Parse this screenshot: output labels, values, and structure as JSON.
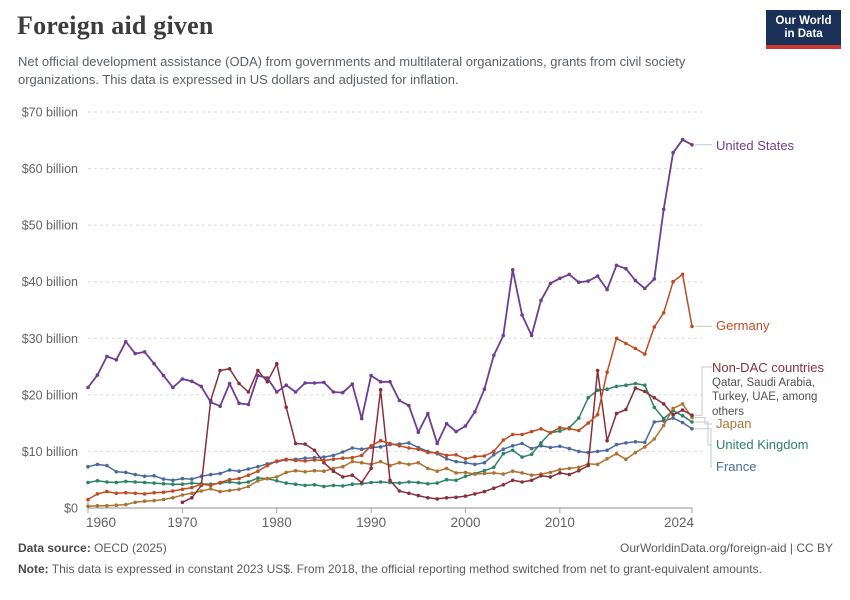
{
  "header": {
    "title": "Foreign aid given",
    "subtitle": "Net official development assistance (ODA) from governments and multilateral organizations, grants from civil society organizations. This data is expressed in US dollars and adjusted for inflation.",
    "logo": {
      "line1": "Our World",
      "line2": "in Data",
      "bg_color": "#1a3057",
      "accent_color": "#cd3731"
    }
  },
  "footer": {
    "source_label": "Data source:",
    "source_value": " OECD (2025)",
    "link_text": "OurWorldinData.org/foreign-aid | CC BY",
    "note_label": "Note:",
    "note_value": " This data is expressed in constant 2023 US$. From 2018, the official reporting method switched from net to grant-equivalent amounts."
  },
  "chart_data": {
    "type": "line",
    "title": "Foreign aid given",
    "xlabel": "",
    "ylabel": "",
    "xlim": [
      1960,
      2024
    ],
    "ylim": [
      0,
      70
    ],
    "grid": "horizontal-dashed",
    "legend_position": "right-edge-labels",
    "xticks": [
      1960,
      1970,
      1980,
      1990,
      2000,
      2010,
      2024
    ],
    "yticks": [
      0,
      10,
      20,
      30,
      40,
      50,
      60,
      70
    ],
    "ytick_labels": [
      "$0",
      "$10 billion",
      "$20 billion",
      "$30 billion",
      "$40 billion",
      "$50 billion",
      "$60 billion",
      "$70 billion"
    ],
    "unit": "US$ billion (constant 2023)",
    "x": [
      1960,
      1961,
      1962,
      1963,
      1964,
      1965,
      1966,
      1967,
      1968,
      1969,
      1970,
      1971,
      1972,
      1973,
      1974,
      1975,
      1976,
      1977,
      1978,
      1979,
      1980,
      1981,
      1982,
      1983,
      1984,
      1985,
      1986,
      1987,
      1988,
      1989,
      1990,
      1991,
      1992,
      1993,
      1994,
      1995,
      1996,
      1997,
      1998,
      1999,
      2000,
      2001,
      2002,
      2003,
      2004,
      2005,
      2006,
      2007,
      2008,
      2009,
      2010,
      2011,
      2012,
      2013,
      2014,
      2015,
      2016,
      2017,
      2018,
      2019,
      2020,
      2021,
      2022,
      2023,
      2024
    ],
    "series": [
      {
        "name": "United States",
        "color": "#6d3e91",
        "values": [
          21.3,
          23.5,
          26.8,
          26.2,
          29.4,
          27.3,
          27.6,
          25.5,
          23.4,
          21.3,
          22.8,
          22.4,
          21.5,
          18.7,
          18.0,
          22.0,
          18.5,
          18.3,
          23.4,
          23.0,
          20.5,
          21.7,
          20.5,
          22.1,
          22.1,
          22.2,
          20.5,
          20.4,
          21.9,
          15.8,
          23.4,
          22.3,
          22.3,
          19.0,
          18.1,
          13.4,
          16.7,
          11.4,
          14.9,
          13.5,
          14.5,
          17.0,
          21.0,
          27.0,
          30.5,
          42.1,
          34.1,
          30.5,
          36.7,
          39.7,
          40.6,
          41.3,
          39.9,
          40.1,
          41.0,
          38.6,
          42.9,
          42.3,
          40.2,
          38.8,
          40.5,
          52.8,
          62.8,
          65.1,
          64.2
        ]
      },
      {
        "name": "Germany",
        "color": "#bf4b23",
        "values": [
          1.5,
          2.5,
          2.9,
          2.6,
          2.7,
          2.6,
          2.5,
          2.7,
          2.8,
          3.0,
          3.3,
          3.6,
          4.2,
          4.0,
          4.5,
          5.0,
          5.2,
          5.8,
          6.5,
          7.5,
          8.3,
          8.6,
          8.4,
          8.3,
          8.5,
          8.4,
          8.6,
          8.8,
          8.9,
          9.3,
          11.0,
          11.9,
          11.4,
          11.0,
          10.6,
          10.4,
          9.8,
          9.8,
          9.3,
          9.4,
          8.7,
          9.1,
          9.2,
          10.0,
          12.0,
          13.0,
          13.0,
          13.5,
          14.0,
          13.3,
          14.2,
          14.0,
          13.7,
          15.0,
          16.5,
          24.0,
          30.0,
          29.1,
          28.2,
          27.2,
          32.0,
          34.5,
          40.0,
          41.3,
          32.1
        ]
      },
      {
        "name": "Non-DAC countries",
        "sublabel": "Qatar, Saudi Arabia, Turkey, UAE, among others",
        "color": "#883039",
        "values": [
          null,
          null,
          null,
          null,
          null,
          null,
          null,
          null,
          null,
          null,
          1.0,
          1.8,
          4.0,
          19.0,
          24.3,
          24.6,
          22.0,
          20.5,
          24.3,
          22.3,
          25.5,
          17.8,
          11.4,
          11.3,
          10.2,
          8.0,
          6.5,
          5.5,
          5.8,
          4.5,
          7.0,
          20.9,
          4.9,
          3.0,
          2.6,
          2.2,
          1.8,
          1.6,
          1.8,
          1.9,
          2.1,
          2.5,
          2.9,
          3.5,
          4.1,
          4.9,
          4.6,
          4.9,
          5.7,
          5.5,
          6.2,
          5.9,
          6.6,
          7.5,
          24.3,
          11.9,
          16.7,
          17.4,
          21.2,
          20.6,
          19.5,
          18.4,
          16.5,
          17.3,
          16.4
        ]
      },
      {
        "name": "Japan",
        "color": "#ab7433",
        "values": [
          0.3,
          0.4,
          0.4,
          0.5,
          0.6,
          1.0,
          1.2,
          1.3,
          1.5,
          1.8,
          2.3,
          2.6,
          3.0,
          3.4,
          2.9,
          3.1,
          3.3,
          3.8,
          4.8,
          5.2,
          5.5,
          6.3,
          6.6,
          6.4,
          6.6,
          6.5,
          7.0,
          7.3,
          8.2,
          8.0,
          7.7,
          8.2,
          7.5,
          8.0,
          7.7,
          8.0,
          7.0,
          6.5,
          7.0,
          6.2,
          6.3,
          6.0,
          6.1,
          6.2,
          6.0,
          6.5,
          6.2,
          5.8,
          6.0,
          6.3,
          6.8,
          7.0,
          7.2,
          7.8,
          7.7,
          8.7,
          9.6,
          8.6,
          9.8,
          10.8,
          12.2,
          14.6,
          17.6,
          18.4,
          16.0
        ]
      },
      {
        "name": "United Kingdom",
        "color": "#2c8465",
        "values": [
          4.5,
          4.8,
          4.6,
          4.5,
          4.7,
          4.6,
          4.5,
          4.4,
          4.3,
          4.2,
          4.2,
          4.4,
          4.3,
          4.2,
          4.4,
          4.6,
          4.4,
          4.6,
          5.3,
          5.2,
          4.8,
          4.4,
          4.2,
          4.0,
          4.1,
          3.8,
          4.0,
          3.9,
          4.2,
          4.3,
          4.5,
          4.6,
          4.5,
          4.4,
          4.6,
          4.5,
          4.3,
          4.4,
          5.0,
          4.9,
          5.6,
          6.1,
          6.6,
          7.2,
          9.6,
          10.2,
          9.0,
          9.5,
          11.5,
          13.3,
          13.6,
          14.2,
          15.9,
          19.5,
          20.8,
          21.0,
          21.5,
          21.7,
          22.0,
          21.7,
          17.8,
          15.8,
          17.2,
          16.3,
          15.2
        ]
      },
      {
        "name": "France",
        "color": "#4c6a9c",
        "values": [
          7.3,
          7.7,
          7.5,
          6.4,
          6.3,
          5.9,
          5.6,
          5.7,
          5.1,
          4.9,
          5.2,
          5.1,
          5.6,
          5.9,
          6.1,
          6.7,
          6.5,
          6.9,
          7.3,
          7.8,
          8.2,
          8.5,
          8.6,
          8.8,
          8.9,
          9.0,
          9.3,
          9.9,
          10.6,
          10.4,
          10.7,
          10.8,
          11.2,
          11.3,
          11.5,
          10.7,
          10.0,
          9.6,
          8.7,
          8.2,
          8.0,
          7.7,
          8.0,
          9.4,
          10.4,
          11.0,
          11.4,
          10.5,
          11.0,
          10.7,
          10.9,
          10.5,
          10.0,
          9.8,
          10.0,
          10.2,
          11.2,
          11.5,
          11.7,
          11.6,
          15.2,
          15.4,
          15.9,
          15.1,
          14.0
        ]
      }
    ]
  }
}
